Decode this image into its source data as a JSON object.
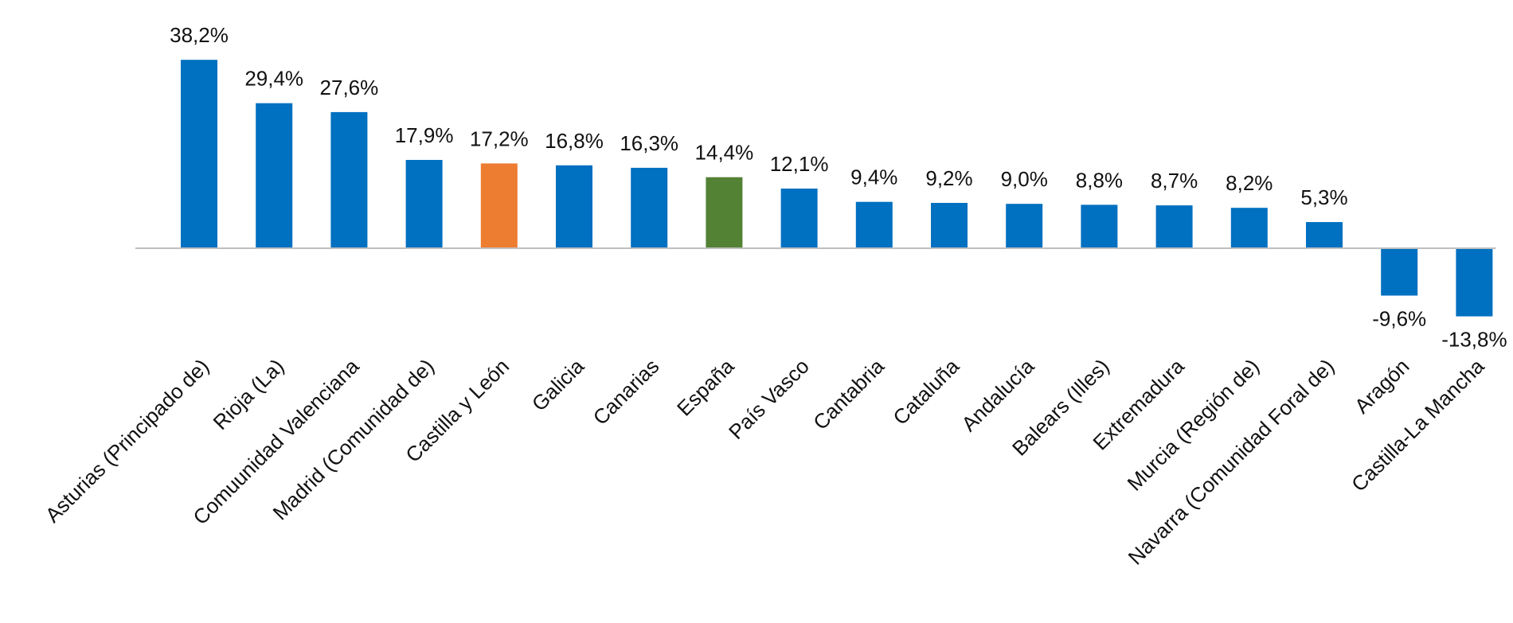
{
  "chart_data": {
    "type": "bar",
    "title": "",
    "xlabel": "",
    "ylabel": "",
    "ylim": [
      -15,
      40
    ],
    "grid": false,
    "legend": "none",
    "categories": [
      "Asturias (Principado de)",
      "Rioja (La)",
      "Comuunidad Valenciana",
      "Madrid (Comunidad de)",
      "Castilla y León",
      "Galicia",
      "Canarias",
      "España",
      "País Vasco",
      "Cantabria",
      "Cataluña",
      "Andalucía",
      "Balears (Illes)",
      "Extremadura",
      "Murcia (Región de)",
      "Navarra (Comunidad Foral de)",
      "Aragón",
      "Castilla-La Mancha"
    ],
    "values": [
      38.2,
      29.4,
      27.6,
      17.9,
      17.2,
      16.8,
      16.3,
      14.4,
      12.1,
      9.4,
      9.2,
      9.0,
      8.8,
      8.7,
      8.2,
      5.3,
      -9.6,
      -13.8
    ],
    "value_labels": [
      "38,2%",
      "29,4%",
      "27,6%",
      "17,9%",
      "17,2%",
      "16,8%",
      "16,3%",
      "14,4%",
      "12,1%",
      "9,4%",
      "9,2%",
      "9,0%",
      "8,8%",
      "8,7%",
      "8,2%",
      "5,3%",
      "-9,6%",
      "-13,8%"
    ],
    "colors": {
      "default": "#0070C0",
      "highlight": "#ED7D31",
      "national": "#548235",
      "axis": "#BFBFBF"
    },
    "bar_colors": [
      "default",
      "default",
      "default",
      "default",
      "highlight",
      "default",
      "default",
      "national",
      "default",
      "default",
      "default",
      "default",
      "default",
      "default",
      "default",
      "default",
      "default",
      "default"
    ]
  }
}
